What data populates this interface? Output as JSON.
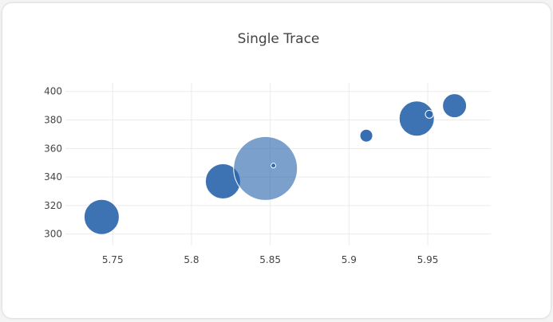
{
  "chart_data": {
    "type": "scatter",
    "title": "Single Trace",
    "xlabel": "",
    "ylabel": "",
    "xlim": [
      5.72,
      5.99
    ],
    "ylim": [
      292,
      406
    ],
    "x_ticks": [
      5.75,
      5.8,
      5.85,
      5.9,
      5.95
    ],
    "x_tick_labels": [
      "5.75",
      "5.8",
      "5.85",
      "5.9",
      "5.95"
    ],
    "y_ticks": [
      300,
      320,
      340,
      360,
      380,
      400
    ],
    "y_tick_labels": [
      "300",
      "320",
      "340",
      "360",
      "380",
      "400"
    ],
    "grid": true,
    "marker_color": "#2c66ad",
    "points": [
      {
        "x": 5.743,
        "y": 312,
        "size": 22,
        "opacity": 0.92
      },
      {
        "x": 5.82,
        "y": 337,
        "size": 22,
        "opacity": 0.92
      },
      {
        "x": 5.847,
        "y": 346,
        "size": 40,
        "opacity": 0.62
      },
      {
        "x": 5.852,
        "y": 348,
        "size": 3,
        "opacity": 0.9
      },
      {
        "x": 5.911,
        "y": 369,
        "size": 8,
        "opacity": 0.95
      },
      {
        "x": 5.943,
        "y": 381,
        "size": 22,
        "opacity": 0.92
      },
      {
        "x": 5.951,
        "y": 384,
        "size": 5,
        "opacity": 0.6
      },
      {
        "x": 5.967,
        "y": 390,
        "size": 15,
        "opacity": 0.92
      }
    ]
  }
}
